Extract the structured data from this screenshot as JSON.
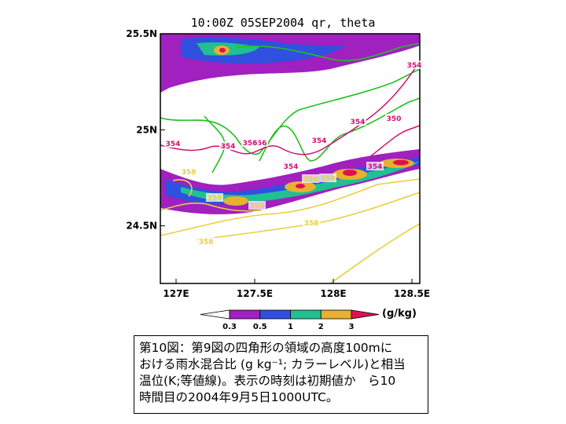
{
  "chart_data": {
    "type": "heatmap",
    "title": "10:00Z 05SEP2004 qr, theta",
    "x_ticks": [
      "127E",
      "127.5E",
      "128E",
      "128.5E"
    ],
    "y_ticks": [
      "25.5N",
      "25N",
      "24.5N"
    ],
    "xlim": [
      126.9,
      128.55
    ],
    "ylim": [
      24.2,
      25.5
    ],
    "colorbar": {
      "levels": [
        0.3,
        0.5,
        1,
        2,
        3
      ],
      "level_labels": [
        "0.3",
        "0.5",
        "1",
        "2",
        "3"
      ],
      "colors": [
        "#a020c0",
        "#3050e0",
        "#20c090",
        "#e8b030",
        "#e01050"
      ],
      "unit": "(g/kg)"
    },
    "contour_labels": [
      "354",
      "350",
      "354",
      "354",
      "354",
      "356",
      "354",
      "354",
      "356",
      "354",
      "358",
      "358",
      "358",
      "356",
      "358",
      "358",
      "358"
    ]
  },
  "caption": {
    "lines": [
      "第10図：第9図の四角形の領域の高度100mに",
      "おける雨水混合比 (g kg⁻¹; カラーレベル)と相当",
      "温位(K;等値線)。表示の時刻は初期値か　ら10",
      "時間目の2004年9月5日1000UTC。"
    ]
  },
  "colors": {
    "contour_green": "#20c020",
    "contour_magenta": "#d01070",
    "contour_yellow": "#e8d040"
  }
}
